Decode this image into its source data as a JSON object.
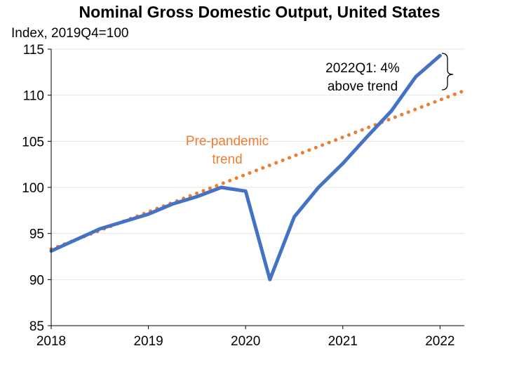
{
  "chart_data": {
    "type": "line",
    "title": "Nominal Gross Domestic Output, United States",
    "ylabel": "Index, 2019Q4=100",
    "xlabel": "",
    "ylim": [
      85,
      115
    ],
    "xlim": [
      2018.0,
      2022.25
    ],
    "y_ticks": [
      85,
      90,
      95,
      100,
      105,
      110,
      115
    ],
    "x_ticks": [
      2018,
      2019,
      2020,
      2021,
      2022
    ],
    "grid": "horizontal",
    "colors": {
      "actual": "#4472C4",
      "trend": "#ED7D31",
      "axis": "#000000",
      "grid": "#e6e6e6"
    },
    "series": [
      {
        "name": "Nominal gross domestic output",
        "style": "solid",
        "x": [
          2018.0,
          2018.25,
          2018.5,
          2018.75,
          2019.0,
          2019.25,
          2019.5,
          2019.75,
          2020.0,
          2020.25,
          2020.5,
          2020.75,
          2021.0,
          2021.25,
          2021.5,
          2021.75,
          2022.0
        ],
        "values": [
          93.1,
          94.3,
          95.5,
          96.3,
          97.1,
          98.2,
          99.0,
          100.0,
          99.6,
          90.0,
          96.8,
          100.0,
          102.6,
          105.5,
          108.3,
          112.0,
          114.3
        ]
      },
      {
        "name": "Pre-pandemic trend",
        "style": "dotted",
        "x": [
          2018.0,
          2022.25
        ],
        "values": [
          93.3,
          110.5
        ]
      }
    ],
    "annotations": {
      "trend_label_line1": "Pre-pandemic",
      "trend_label_line2": "trend",
      "gap_label_line1": "2022Q1: 4%",
      "gap_label_line2": "above trend"
    }
  }
}
